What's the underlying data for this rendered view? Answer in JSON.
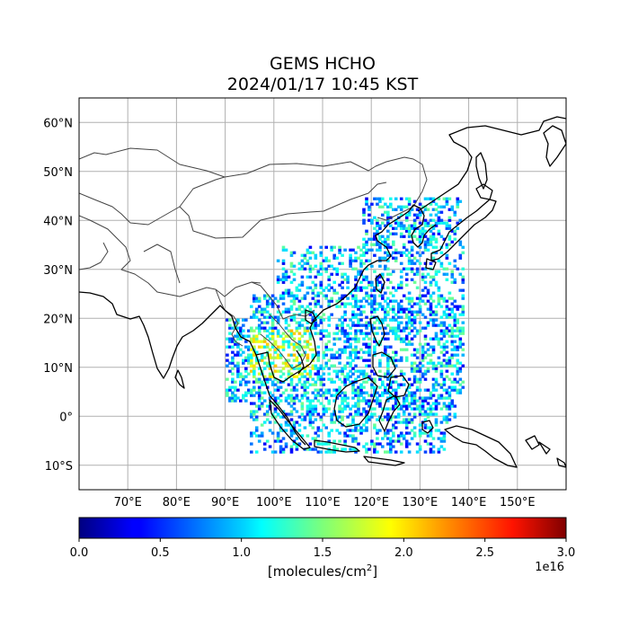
{
  "title_line1": "GEMS HCHO",
  "title_line2": "2024/01/17 10:45 KST",
  "map": {
    "lon_range": [
      60,
      160
    ],
    "lat_range": [
      -15,
      65
    ],
    "lon_ticks": [
      {
        "value": 70,
        "label": "70°E"
      },
      {
        "value": 80,
        "label": "80°E"
      },
      {
        "value": 90,
        "label": "90°E"
      },
      {
        "value": 100,
        "label": "100°E"
      },
      {
        "value": 110,
        "label": "110°E"
      },
      {
        "value": 120,
        "label": "120°E"
      },
      {
        "value": 130,
        "label": "130°E"
      },
      {
        "value": 140,
        "label": "140°E"
      },
      {
        "value": 150,
        "label": "150°E"
      }
    ],
    "lat_ticks": [
      {
        "value": 60,
        "label": "60°N"
      },
      {
        "value": 50,
        "label": "50°N"
      },
      {
        "value": 40,
        "label": "40°N"
      },
      {
        "value": 30,
        "label": "30°N"
      },
      {
        "value": 20,
        "label": "20°N"
      },
      {
        "value": 10,
        "label": "10°N"
      },
      {
        "value": 0,
        "label": "0°"
      },
      {
        "value": -10,
        "label": "10°S"
      }
    ],
    "grid": true,
    "coastline_color": "#000000",
    "border_color": "#444444"
  },
  "colorbar": {
    "min": 0.0,
    "max": 3.0,
    "ticks": [
      "0.0",
      "0.5",
      "1.0",
      "1.5",
      "2.0",
      "2.5",
      "3.0"
    ],
    "unit_prefix": "[molecules/cm",
    "unit_sup": "2",
    "unit_suffix": "]",
    "exponent": "1e16",
    "colormap": "jet"
  }
}
